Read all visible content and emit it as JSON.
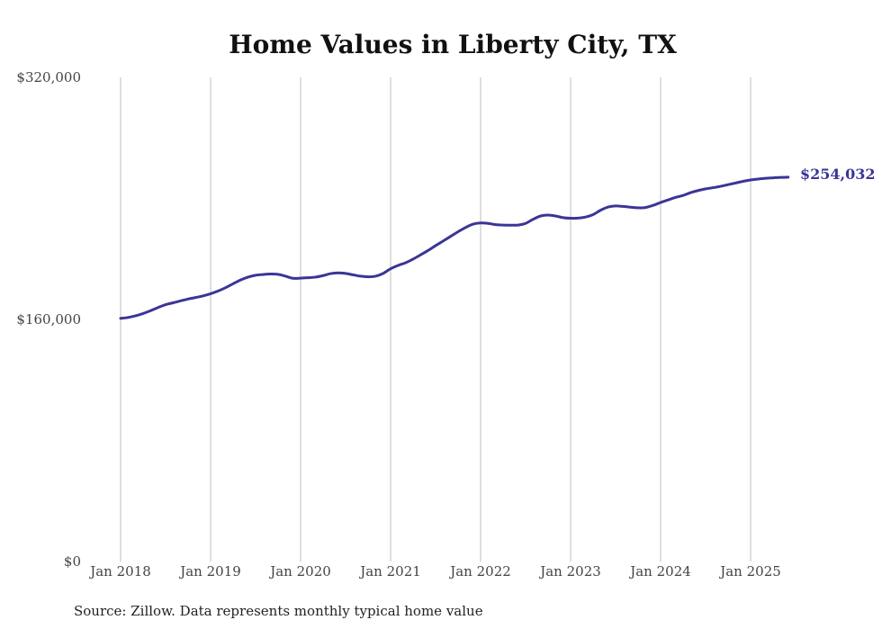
{
  "chart_data": {
    "type": "line",
    "title": "Home Values in Liberty City, TX",
    "xlabel": "",
    "ylabel": "",
    "ylim": [
      0,
      320000
    ],
    "ytick_labels": [
      "$0",
      "$160,000",
      "$320,000"
    ],
    "yticks": [
      0,
      160000,
      320000
    ],
    "xticks": [
      "2018-01",
      "2019-01",
      "2020-01",
      "2021-01",
      "2022-01",
      "2023-01",
      "2024-01",
      "2025-01"
    ],
    "xtick_labels": [
      "Jan 2018",
      "Jan 2019",
      "Jan 2020",
      "Jan 2021",
      "Jan 2022",
      "Jan 2023",
      "Jan 2024",
      "Jan 2025"
    ],
    "x_range": [
      "2018-01",
      "2025-06"
    ],
    "grid": "vertical",
    "legend": "none",
    "series_color": "#3b3596",
    "series": [
      {
        "x": [
          "2018-01",
          "2018-02",
          "2018-03",
          "2018-04",
          "2018-05",
          "2018-06",
          "2018-07",
          "2018-08",
          "2018-09",
          "2018-10",
          "2018-11",
          "2018-12",
          "2019-01",
          "2019-02",
          "2019-03",
          "2019-04",
          "2019-05",
          "2019-06",
          "2019-07",
          "2019-08",
          "2019-09",
          "2019-10",
          "2019-11",
          "2019-12",
          "2020-01",
          "2020-02",
          "2020-03",
          "2020-04",
          "2020-05",
          "2020-06",
          "2020-07",
          "2020-08",
          "2020-09",
          "2020-10",
          "2020-11",
          "2020-12",
          "2021-01",
          "2021-02",
          "2021-03",
          "2021-04",
          "2021-05",
          "2021-06",
          "2021-07",
          "2021-08",
          "2021-09",
          "2021-10",
          "2021-11",
          "2021-12",
          "2022-01",
          "2022-02",
          "2022-03",
          "2022-04",
          "2022-05",
          "2022-06",
          "2022-07",
          "2022-08",
          "2022-09",
          "2022-10",
          "2022-11",
          "2022-12",
          "2023-01",
          "2023-02",
          "2023-03",
          "2023-04",
          "2023-05",
          "2023-06",
          "2023-07",
          "2023-08",
          "2023-09",
          "2023-10",
          "2023-11",
          "2023-12",
          "2024-01",
          "2024-02",
          "2024-03",
          "2024-04",
          "2024-05",
          "2024-06",
          "2024-07",
          "2024-08",
          "2024-09",
          "2024-10",
          "2024-11",
          "2024-12",
          "2025-01",
          "2025-02",
          "2025-03",
          "2025-04",
          "2025-05",
          "2025-06"
        ],
        "values": [
          160700,
          161300,
          162400,
          163900,
          165800,
          167900,
          169800,
          171000,
          172300,
          173500,
          174500,
          175600,
          177000,
          178800,
          181000,
          183600,
          186100,
          188000,
          189200,
          189700,
          190000,
          189800,
          188600,
          187200,
          187300,
          187600,
          188000,
          189000,
          190300,
          190800,
          190400,
          189500,
          188600,
          188200,
          188600,
          190400,
          193500,
          195700,
          197500,
          199900,
          202700,
          205600,
          208800,
          211800,
          214900,
          218000,
          220800,
          223000,
          223800,
          223500,
          222700,
          222400,
          222300,
          222400,
          223500,
          226200,
          228400,
          229000,
          228400,
          227300,
          226900,
          227000,
          227700,
          229300,
          232200,
          234300,
          235000,
          234700,
          234200,
          233800,
          234000,
          235400,
          237300,
          239000,
          240700,
          242000,
          243800,
          245200,
          246300,
          247100,
          248000,
          249100,
          250200,
          251300,
          252200,
          252800,
          253300,
          253600,
          253900,
          254032
        ],
        "end_label": "$254,032"
      }
    ]
  },
  "footer": {
    "source": "Source: Zillow. Data represents monthly typical home value"
  }
}
